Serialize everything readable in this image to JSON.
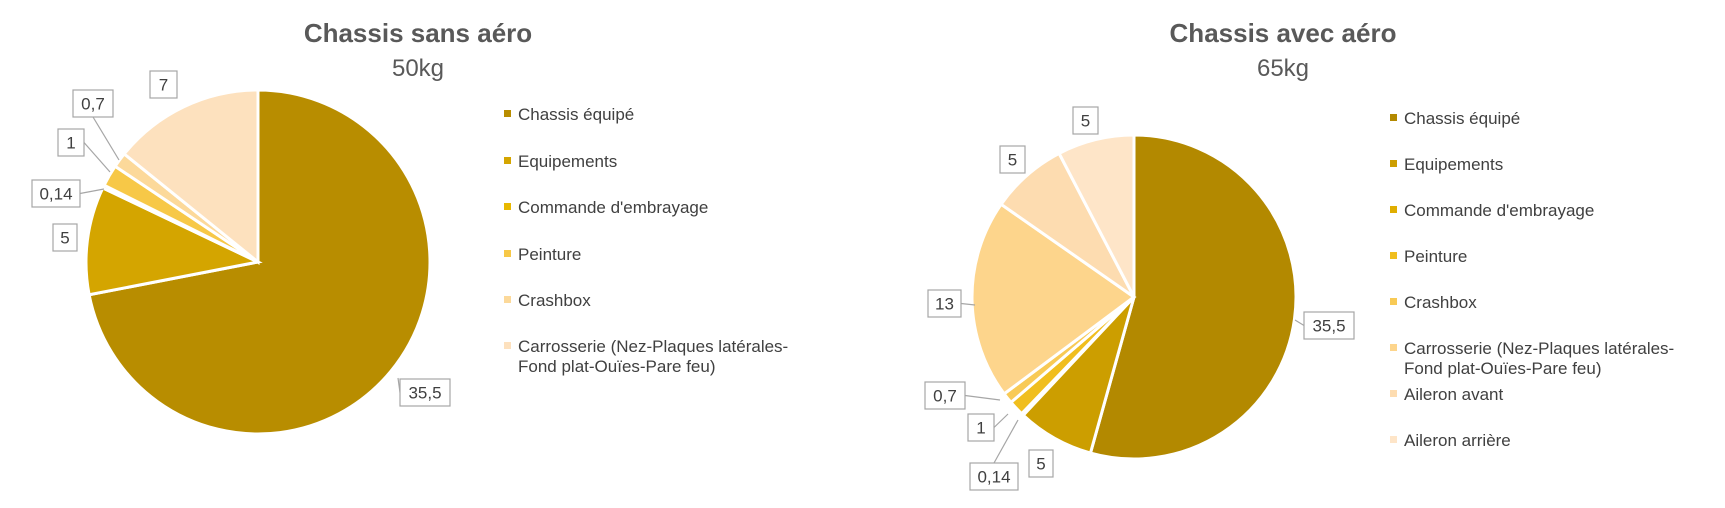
{
  "chart_data": [
    {
      "type": "pie",
      "title": "Chassis sans aéro",
      "subtitle": "50kg",
      "categories": [
        "Chassis équipé",
        "Equipements",
        "Commande d'embrayage",
        "Peinture",
        "Crashbox",
        "Carrosserie (Nez-Plaques latérales-Fond plat-Ouïes-Pare feu)"
      ],
      "legend_lines": [
        [
          "Chassis équipé"
        ],
        [
          "Equipements"
        ],
        [
          "Commande d'embrayage"
        ],
        [
          "Peinture"
        ],
        [
          "Crashbox"
        ],
        [
          "Carrosserie (Nez-Plaques latérales-",
          "Fond plat-Ouïes-Pare feu)"
        ]
      ],
      "values": [
        35.5,
        5,
        0.14,
        1,
        0.7,
        7
      ],
      "data_labels": [
        "35,5",
        "5",
        "0,14",
        "1",
        "0,7",
        "7"
      ],
      "colors": [
        "#B88D00",
        "#D4A500",
        "#E8B800",
        "#F7C847",
        "#FCD99A",
        "#FDE1BE"
      ],
      "legend_position": "right"
    },
    {
      "type": "pie",
      "title": "Chassis avec aéro",
      "subtitle": "65kg",
      "categories": [
        "Chassis équipé",
        "Equipements",
        "Commande d'embrayage",
        "Peinture",
        "Crashbox",
        "Carrosserie (Nez-Plaques latérales-Fond plat-Ouïes-Pare feu)",
        "Aileron avant",
        "Aileron arrière"
      ],
      "legend_lines": [
        [
          "Chassis équipé"
        ],
        [
          "Equipements"
        ],
        [
          "Commande d'embrayage"
        ],
        [
          "Peinture"
        ],
        [
          "Crashbox"
        ],
        [
          "Carrosserie (Nez-Plaques latérales-",
          "Fond plat-Ouïes-Pare feu)"
        ],
        [
          "Aileron avant"
        ],
        [
          "Aileron arrière"
        ]
      ],
      "values": [
        35.5,
        5,
        0.14,
        1,
        0.7,
        13,
        5,
        5
      ],
      "data_labels": [
        "35,5",
        "5",
        "0,14",
        "1",
        "0,7",
        "13",
        "5",
        "5"
      ],
      "colors": [
        "#B38900",
        "#CC9E00",
        "#E0AE00",
        "#F0BE1E",
        "#F8CA55",
        "#FDD58C",
        "#FDDCB0",
        "#FEE5C8"
      ],
      "legend_position": "right"
    }
  ]
}
